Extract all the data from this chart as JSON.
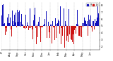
{
  "background_color": "#ffffff",
  "bar_color_above": "#1111bb",
  "bar_color_below": "#cc1111",
  "baseline": 50,
  "ylim": [
    15,
    85
  ],
  "num_points": 365,
  "ytick_vals": [
    20,
    30,
    40,
    50,
    60,
    70,
    80
  ],
  "ytick_labels": [
    "2",
    "3",
    "4",
    "5",
    "6",
    "7",
    "8"
  ],
  "grid_color": "#999999",
  "month_names": [
    "Jul",
    "Aug",
    "Sep",
    "Oct",
    "Nov",
    "Dec",
    "Jan",
    "Feb",
    "Mar",
    "Apr",
    "May",
    "Jun"
  ],
  "days_in_months": [
    31,
    28,
    31,
    30,
    31,
    30,
    31,
    31,
    30,
    31,
    30,
    31
  ],
  "seed": 42
}
